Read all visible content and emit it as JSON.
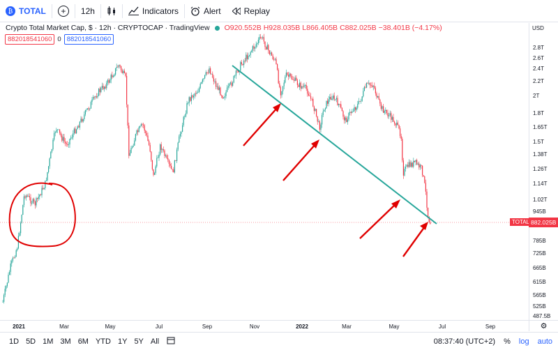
{
  "toolbar": {
    "symbol": "TOTAL",
    "interval": "12h",
    "indicators_label": "Indicators",
    "alert_label": "Alert",
    "replay_label": "Replay"
  },
  "legend": {
    "title": "Crypto Total Market Cap, $ · 12h · CRYPTOCAP · TradingView",
    "open": "O920.552B",
    "high": "H928.035B",
    "low": "L866.405B",
    "close": "C882.025B",
    "change": "−38.401B (−4.17%)"
  },
  "indicators": {
    "left_value": "882018541060",
    "zero": "0",
    "right_value": "882018541060"
  },
  "price_axis": {
    "currency": "USD",
    "ticks": [
      "2.8T",
      "2.6T",
      "2.4T",
      "2.2T",
      "2T",
      "1.8T",
      "1.65T",
      "1.5T",
      "1.38T",
      "1.26T",
      "1.14T",
      "1.02T",
      "945B",
      "865B",
      "785B",
      "725B",
      "665B",
      "615B",
      "565B",
      "525B",
      "487.5B"
    ],
    "total_label": "TOTAL",
    "last_price": "882.025B"
  },
  "time_axis": {
    "ticks": [
      {
        "label": "2021",
        "bold": true
      },
      {
        "label": "Mar",
        "bold": false
      },
      {
        "label": "May",
        "bold": false
      },
      {
        "label": "Jul",
        "bold": false
      },
      {
        "label": "Sep",
        "bold": false
      },
      {
        "label": "Nov",
        "bold": false
      },
      {
        "label": "2022",
        "bold": true
      },
      {
        "label": "Mar",
        "bold": false
      },
      {
        "label": "May",
        "bold": false
      },
      {
        "label": "Jul",
        "bold": false
      },
      {
        "label": "Sep",
        "bold": false
      }
    ]
  },
  "bottombar": {
    "ranges": [
      "1D",
      "5D",
      "1M",
      "3M",
      "6M",
      "YTD",
      "1Y",
      "5Y",
      "All"
    ],
    "time": "08:37:40 (UTC+2)",
    "percent": "%",
    "log": "log",
    "auto": "auto"
  },
  "colors": {
    "up": "#26a69a",
    "down": "#f23645",
    "trendline": "#26a69a",
    "annotation": "#e00000",
    "accent": "#2962ff"
  },
  "chart_data": {
    "type": "candlestick",
    "title": "Crypto Total Market Cap, $ · 12h · CRYPTOCAP · TradingView",
    "interval": "12h",
    "y_scale": "log",
    "x": [
      "2021-01",
      "2021-02",
      "2021-03",
      "2021-04",
      "2021-05",
      "2021-06",
      "2021-07",
      "2021-08",
      "2021-09",
      "2021-10",
      "2021-11",
      "2021-12",
      "2022-01",
      "2022-02",
      "2022-03",
      "2022-04",
      "2022-05",
      "2022-06"
    ],
    "approx_close_usd_B": [
      500,
      900,
      1650,
      2000,
      2450,
      1300,
      1250,
      1850,
      2000,
      2500,
      2850,
      2200,
      1750,
      1700,
      1900,
      2100,
      1300,
      882
    ]
  }
}
